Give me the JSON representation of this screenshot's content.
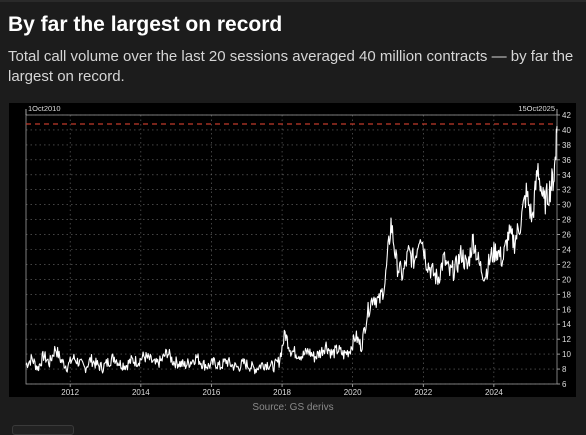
{
  "header": {
    "title": "By far the largest on record",
    "subtitle": "Total call volume over the last 20 sessions averaged 40 million contracts — by far the largest on record."
  },
  "footer": {
    "source": "Source: GS derivs"
  },
  "colors": {
    "background": "#1c1c1c",
    "plot_background": "#000000",
    "line": "#ffffff",
    "reference_line": "#c0392b",
    "grid": "#6e6e6e"
  },
  "chart_data": {
    "type": "line",
    "title": "",
    "xlabel": "",
    "ylabel": "",
    "xlim": [
      "2010-10-01",
      "2025-10-15"
    ],
    "ylim": [
      6,
      42
    ],
    "y_ticks": [
      6,
      8,
      10,
      12,
      14,
      16,
      18,
      20,
      22,
      24,
      26,
      28,
      30,
      32,
      34,
      36,
      38,
      40,
      42
    ],
    "x_ticks": [
      "2012",
      "2014",
      "2016",
      "2018",
      "2020",
      "2022",
      "2024"
    ],
    "y_axis_side": "right",
    "grid": true,
    "legend": "none",
    "range_labels": {
      "start": "1Oct2010",
      "end": "15Oct2025"
    },
    "reference_line": {
      "value": 40.8,
      "style": "dashed"
    },
    "series": [
      {
        "values": [
          [
            "2010-10-01",
            8.6
          ],
          [
            "2010-12-01",
            9.4
          ],
          [
            "2011-02-01",
            8.1
          ],
          [
            "2011-04-01",
            9.8
          ],
          [
            "2011-06-01",
            8.8
          ],
          [
            "2011-08-01",
            10.8
          ],
          [
            "2011-10-01",
            9.1
          ],
          [
            "2011-12-01",
            8.3
          ],
          [
            "2012-02-01",
            9.5
          ],
          [
            "2012-04-01",
            8.9
          ],
          [
            "2012-06-01",
            8.1
          ],
          [
            "2012-08-01",
            9.3
          ],
          [
            "2012-10-01",
            8.6
          ],
          [
            "2012-12-01",
            8.2
          ],
          [
            "2013-02-01",
            9.0
          ],
          [
            "2013-04-01",
            9.6
          ],
          [
            "2013-06-01",
            8.7
          ],
          [
            "2013-08-01",
            8.5
          ],
          [
            "2013-10-01",
            9.2
          ],
          [
            "2013-12-01",
            9.0
          ],
          [
            "2014-02-01",
            9.7
          ],
          [
            "2014-04-01",
            9.3
          ],
          [
            "2014-06-01",
            8.6
          ],
          [
            "2014-08-01",
            9.1
          ],
          [
            "2014-10-01",
            10.3
          ],
          [
            "2014-12-01",
            9.0
          ],
          [
            "2015-02-01",
            8.8
          ],
          [
            "2015-04-01",
            8.5
          ],
          [
            "2015-06-01",
            9.0
          ],
          [
            "2015-08-01",
            9.6
          ],
          [
            "2015-10-01",
            8.7
          ],
          [
            "2015-12-01",
            8.4
          ],
          [
            "2016-02-01",
            8.9
          ],
          [
            "2016-04-01",
            8.3
          ],
          [
            "2016-06-01",
            9.1
          ],
          [
            "2016-08-01",
            8.5
          ],
          [
            "2016-10-01",
            8.2
          ],
          [
            "2016-12-01",
            8.8
          ],
          [
            "2017-02-01",
            8.4
          ],
          [
            "2017-04-01",
            8.0
          ],
          [
            "2017-06-01",
            8.6
          ],
          [
            "2017-08-01",
            8.7
          ],
          [
            "2017-10-01",
            8.3
          ],
          [
            "2017-12-01",
            9.0
          ],
          [
            "2018-02-01",
            12.8
          ],
          [
            "2018-04-01",
            10.5
          ],
          [
            "2018-06-01",
            10.1
          ],
          [
            "2018-08-01",
            9.8
          ],
          [
            "2018-10-01",
            10.4
          ],
          [
            "2018-12-01",
            9.6
          ],
          [
            "2019-02-01",
            10.2
          ],
          [
            "2019-04-01",
            11.2
          ],
          [
            "2019-06-01",
            10.0
          ],
          [
            "2019-08-01",
            10.6
          ],
          [
            "2019-10-01",
            9.9
          ],
          [
            "2019-12-01",
            10.5
          ],
          [
            "2020-02-01",
            12.4
          ],
          [
            "2020-04-01",
            11.0
          ],
          [
            "2020-06-01",
            15.5
          ],
          [
            "2020-08-01",
            17.8
          ],
          [
            "2020-10-01",
            17.0
          ],
          [
            "2020-12-01",
            19.5
          ],
          [
            "2021-02-01",
            27.6
          ],
          [
            "2021-04-01",
            22.0
          ],
          [
            "2021-06-01",
            20.5
          ],
          [
            "2021-08-01",
            23.5
          ],
          [
            "2021-10-01",
            22.5
          ],
          [
            "2021-12-01",
            26.5
          ],
          [
            "2022-02-01",
            22.5
          ],
          [
            "2022-04-01",
            21.0
          ],
          [
            "2022-06-01",
            20.0
          ],
          [
            "2022-08-01",
            22.8
          ],
          [
            "2022-10-01",
            20.8
          ],
          [
            "2022-12-01",
            21.5
          ],
          [
            "2023-02-01",
            23.5
          ],
          [
            "2023-04-01",
            21.5
          ],
          [
            "2023-06-01",
            25.5
          ],
          [
            "2023-08-01",
            22.0
          ],
          [
            "2023-10-01",
            20.5
          ],
          [
            "2023-12-01",
            23.0
          ],
          [
            "2024-02-01",
            24.0
          ],
          [
            "2024-04-01",
            22.5
          ],
          [
            "2024-06-01",
            26.0
          ],
          [
            "2024-08-01",
            25.0
          ],
          [
            "2024-10-01",
            27.5
          ],
          [
            "2024-12-01",
            31.5
          ],
          [
            "2025-02-01",
            28.0
          ],
          [
            "2025-04-01",
            35.0
          ],
          [
            "2025-06-01",
            30.0
          ],
          [
            "2025-08-01",
            32.0
          ],
          [
            "2025-09-15",
            34.0
          ],
          [
            "2025-10-15",
            40.5
          ]
        ]
      }
    ]
  }
}
